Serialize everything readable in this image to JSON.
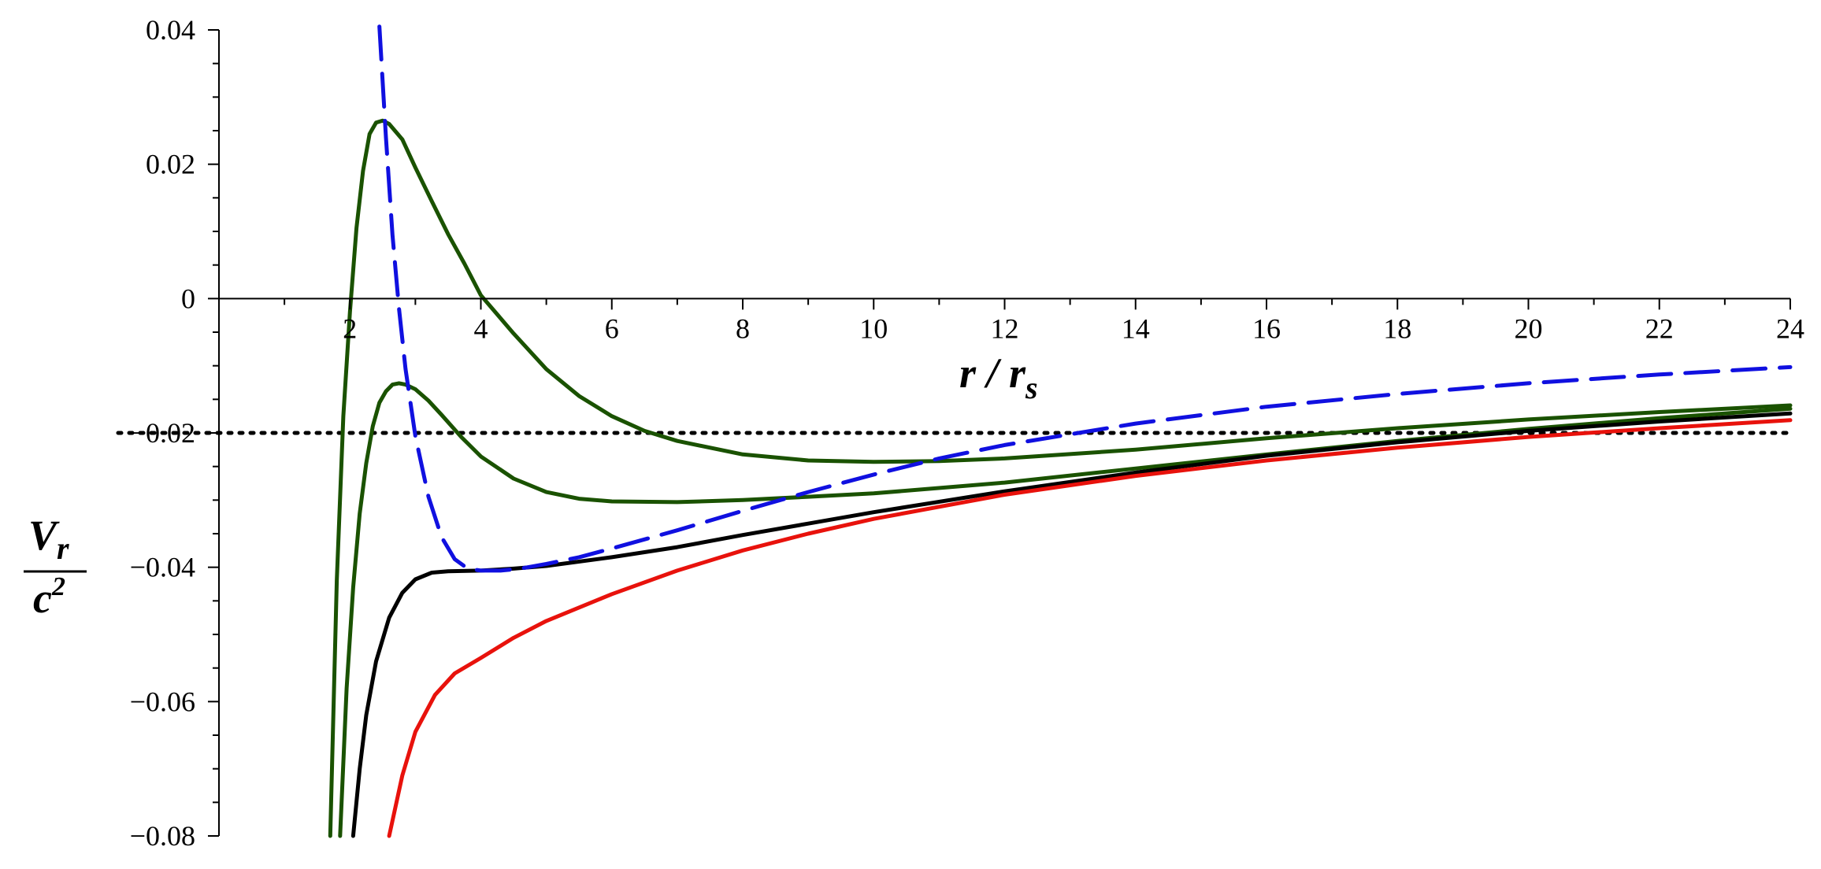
{
  "chart_data": {
    "type": "line",
    "title": "",
    "xlabel": {
      "main": "r / r",
      "sub": "s"
    },
    "ylabel": {
      "numerator_main": "V",
      "numerator_sub": "r",
      "denominator_main": "c",
      "denominator_sup": "2"
    },
    "xlim": [
      0,
      24
    ],
    "ylim": [
      -0.08,
      0.04
    ],
    "x_ticks": [
      2,
      4,
      6,
      8,
      10,
      12,
      14,
      16,
      18,
      20,
      22,
      24
    ],
    "x_tick_labels": [
      "2",
      "4",
      "6",
      "8",
      "10",
      "12",
      "14",
      "16",
      "18",
      "20",
      "22",
      "24"
    ],
    "y_ticks": [
      0.04,
      0.02,
      0,
      -0.02,
      -0.04,
      -0.06,
      -0.08
    ],
    "y_tick_labels": [
      "0.04",
      "0.02",
      "0",
      "−0.02",
      "−0.04",
      "−0.06",
      "−0.08"
    ],
    "grid": false,
    "legend": "none",
    "horizontal_reference": {
      "y": -0.02,
      "style": "dotted",
      "color": "#000000"
    },
    "series": [
      {
        "color": "#1a5200",
        "style": "solid",
        "x": [
          1.7,
          1.8,
          1.9,
          2.0,
          2.1,
          2.2,
          2.3,
          2.4,
          2.5,
          2.6,
          2.8,
          3.0,
          3.25,
          3.5,
          3.75,
          4.0,
          4.5,
          5.0,
          5.5,
          6.0,
          6.5,
          7.0,
          8.0,
          9.0,
          10.0,
          11.0,
          12.0,
          14.0,
          16.0,
          18.0,
          20.0,
          22.0,
          24.0
        ],
        "y": [
          -0.08,
          -0.042,
          -0.0175,
          -0.002,
          0.0105,
          0.019,
          0.0245,
          0.0262,
          0.0265,
          0.026,
          0.0237,
          0.0195,
          0.0145,
          0.0096,
          0.0052,
          0.0005,
          -0.0052,
          -0.0105,
          -0.0145,
          -0.0175,
          -0.0197,
          -0.0212,
          -0.0232,
          -0.0241,
          -0.0243,
          -0.0242,
          -0.0238,
          -0.0225,
          -0.0208,
          -0.0193,
          -0.018,
          -0.0169,
          -0.0159
        ]
      },
      {
        "color": "#1a5200",
        "style": "solid",
        "x": [
          1.85,
          1.95,
          2.05,
          2.15,
          2.25,
          2.35,
          2.45,
          2.55,
          2.65,
          2.75,
          2.85,
          3.0,
          3.2,
          3.4,
          3.7,
          4.0,
          4.5,
          5.0,
          5.5,
          6.0,
          7.0,
          8.0,
          9.0,
          10.0,
          12.0,
          14.0,
          16.0,
          18.0,
          20.0,
          22.0,
          24.0
        ],
        "y": [
          -0.08,
          -0.058,
          -0.043,
          -0.032,
          -0.0245,
          -0.019,
          -0.0155,
          -0.0138,
          -0.0128,
          -0.0126,
          -0.0128,
          -0.0135,
          -0.0152,
          -0.0173,
          -0.0206,
          -0.0235,
          -0.0268,
          -0.0288,
          -0.0298,
          -0.0302,
          -0.0303,
          -0.03,
          -0.0295,
          -0.029,
          -0.0274,
          -0.0253,
          -0.0232,
          -0.0212,
          -0.0194,
          -0.0178,
          -0.0164
        ]
      },
      {
        "color": "#000000",
        "style": "solid",
        "x": [
          2.05,
          2.15,
          2.25,
          2.4,
          2.6,
          2.8,
          3.0,
          3.25,
          3.5,
          4.0,
          4.5,
          5.0,
          6.0,
          7.0,
          8.0,
          9.0,
          10.0,
          12.0,
          14.0,
          16.0,
          18.0,
          20.0,
          22.0,
          24.0
        ],
        "y": [
          -0.08,
          -0.07,
          -0.062,
          -0.054,
          -0.0475,
          -0.0438,
          -0.0418,
          -0.0408,
          -0.0406,
          -0.0405,
          -0.0402,
          -0.0398,
          -0.0385,
          -0.037,
          -0.0352,
          -0.0335,
          -0.0318,
          -0.0287,
          -0.0259,
          -0.0234,
          -0.0214,
          -0.0197,
          -0.0183,
          -0.0171
        ]
      },
      {
        "color": "#e8120c",
        "style": "solid",
        "x": [
          2.6,
          2.8,
          3.0,
          3.3,
          3.6,
          4.0,
          4.5,
          5.0,
          6.0,
          7.0,
          8.0,
          9.0,
          10.0,
          12.0,
          14.0,
          16.0,
          18.0,
          20.0,
          22.0,
          24.0
        ],
        "y": [
          -0.08,
          -0.071,
          -0.0645,
          -0.059,
          -0.0558,
          -0.0535,
          -0.0505,
          -0.048,
          -0.044,
          -0.0405,
          -0.0375,
          -0.035,
          -0.0328,
          -0.0292,
          -0.0264,
          -0.0241,
          -0.0222,
          -0.0206,
          -0.0193,
          -0.0181
        ]
      },
      {
        "color": "#1010e0",
        "style": "dashed",
        "x": [
          2.45,
          2.55,
          2.65,
          2.75,
          2.85,
          3.0,
          3.2,
          3.4,
          3.6,
          3.8,
          4.0,
          4.3,
          4.6,
          5.0,
          5.5,
          6.0,
          7.0,
          8.0,
          9.0,
          10.0,
          11.0,
          12.0,
          14.0,
          16.0,
          18.0,
          20.0,
          22.0,
          24.0
        ],
        "y": [
          0.0405,
          0.024,
          0.0095,
          -0.0015,
          -0.0105,
          -0.0205,
          -0.0295,
          -0.0355,
          -0.0388,
          -0.0402,
          -0.0405,
          -0.0405,
          -0.0402,
          -0.0395,
          -0.0385,
          -0.0372,
          -0.0345,
          -0.0316,
          -0.0288,
          -0.0262,
          -0.0238,
          -0.0218,
          -0.0186,
          -0.0161,
          -0.0142,
          -0.0126,
          -0.0113,
          -0.0102
        ]
      }
    ]
  }
}
